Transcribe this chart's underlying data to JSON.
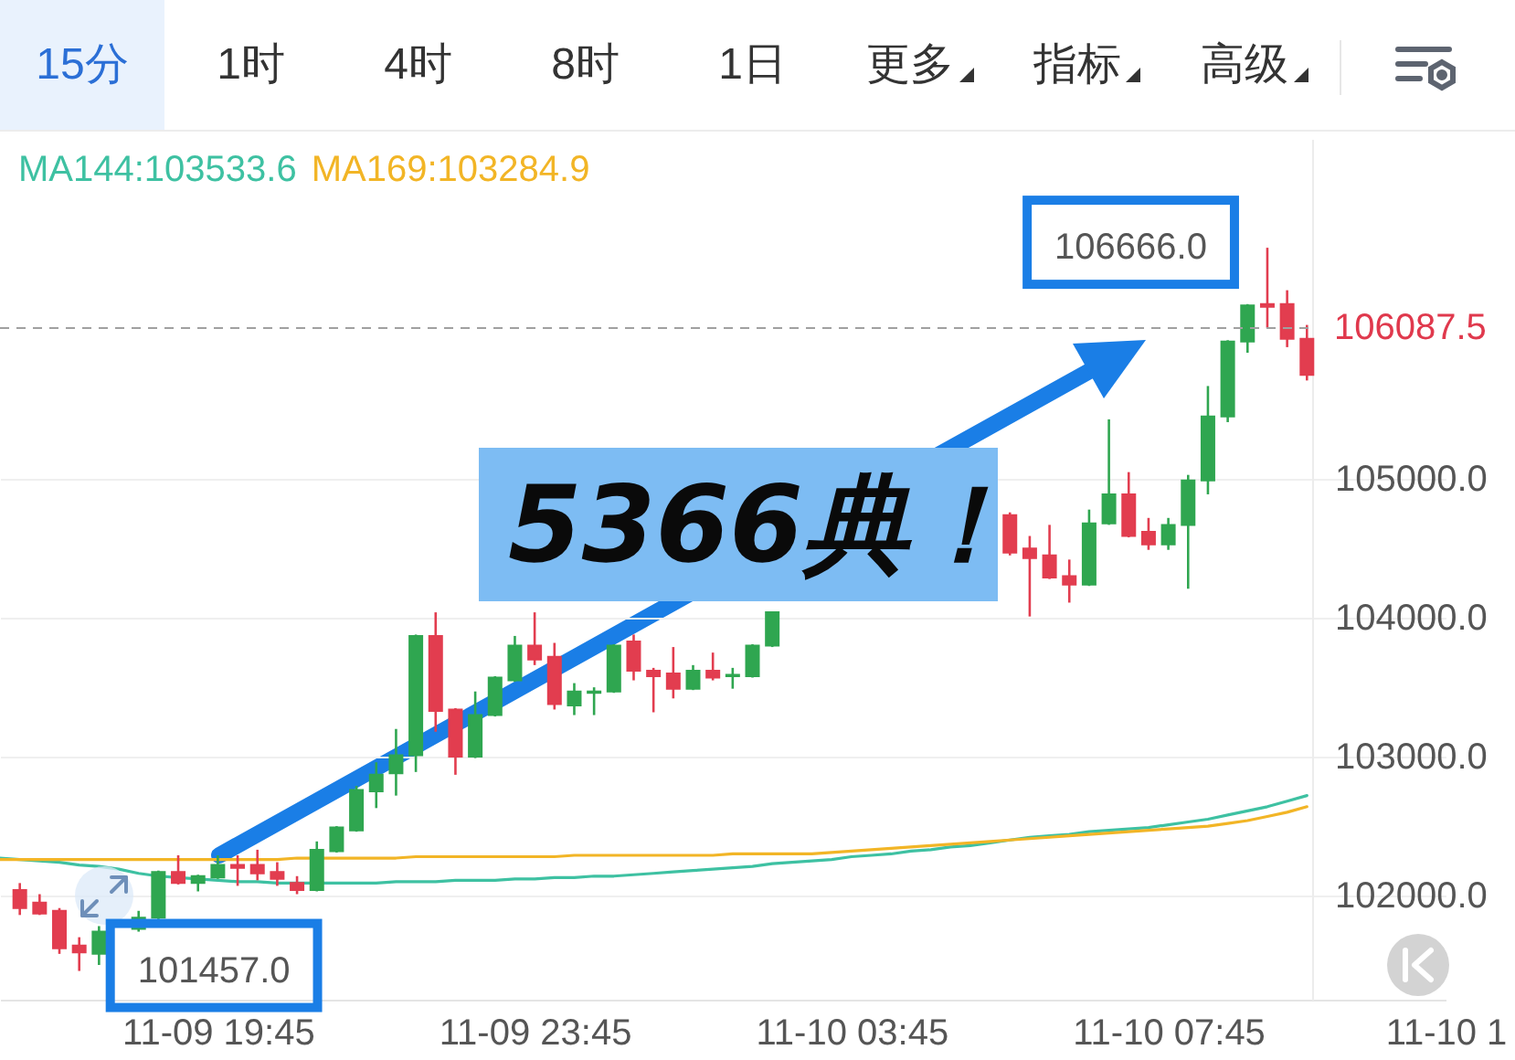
{
  "chart_data": {
    "type": "candlestick",
    "categories": [
      null,
      null,
      null,
      null,
      null,
      null,
      null,
      null,
      null,
      null,
      null,
      "11-09 19:45",
      null,
      null,
      null,
      null,
      null,
      null,
      null,
      null,
      null,
      null,
      null,
      null,
      null,
      null,
      null,
      "11-09 23:45",
      null,
      null,
      null,
      null,
      null,
      null,
      null,
      null,
      null,
      null,
      null,
      null,
      null,
      null,
      null,
      "11-10 03:45",
      null,
      null,
      null,
      null,
      null,
      null,
      null,
      null,
      null,
      null,
      null,
      null,
      null,
      null,
      null,
      "11-10 07:45",
      null,
      null,
      null,
      null,
      null,
      null,
      null,
      null,
      null,
      null,
      null,
      null,
      null,
      "11-10 1"
    ],
    "ohlc": [
      null,
      [
        102040,
        102090,
        101860,
        101910
      ],
      [
        101950,
        102010,
        101860,
        101870
      ],
      [
        101890,
        101910,
        101580,
        101620
      ],
      [
        101640,
        101700,
        101457,
        101590
      ],
      [
        101580,
        101780,
        101500,
        101740
      ],
      null,
      [
        101760,
        101890,
        101740,
        101840
      ],
      [
        101840,
        102180,
        101830,
        102170
      ],
      [
        102170,
        102290,
        102080,
        102090
      ],
      [
        102090,
        102150,
        102030,
        102140
      ],
      [
        102130,
        102290,
        102120,
        102220
      ],
      [
        102220,
        102290,
        102070,
        102200
      ],
      [
        102220,
        102330,
        102110,
        102160
      ],
      [
        102170,
        102240,
        102070,
        102120
      ],
      [
        102090,
        102140,
        102010,
        102040
      ],
      [
        102040,
        102390,
        102030,
        102330
      ],
      [
        102320,
        102500,
        102310,
        102490
      ],
      [
        102470,
        102790,
        102460,
        102760
      ],
      [
        102750,
        102960,
        102630,
        102870
      ],
      [
        102880,
        103200,
        102720,
        103010
      ],
      [
        103010,
        103880,
        102890,
        103870
      ],
      [
        103870,
        104040,
        103180,
        103330
      ],
      [
        103340,
        103350,
        102870,
        103000
      ],
      [
        103000,
        103470,
        102990,
        103300
      ],
      [
        103300,
        103580,
        103290,
        103570
      ],
      [
        103550,
        103870,
        103540,
        103800
      ],
      [
        103800,
        104040,
        103660,
        103700
      ],
      [
        103720,
        103820,
        103340,
        103380
      ],
      [
        103370,
        103530,
        103300,
        103470
      ],
      [
        103460,
        103500,
        103300,
        103470
      ],
      [
        103470,
        103810,
        103460,
        103800
      ],
      [
        103830,
        103880,
        103550,
        103620
      ],
      [
        103620,
        103640,
        103320,
        103580
      ],
      [
        103600,
        103790,
        103420,
        103490
      ],
      [
        103490,
        103660,
        103480,
        103620
      ],
      [
        103620,
        103750,
        103550,
        103570
      ],
      [
        103580,
        103640,
        103490,
        103590
      ],
      [
        103580,
        103810,
        103570,
        103800
      ],
      [
        103800,
        104040,
        103790,
        104040
      ],
      null,
      null,
      null,
      null,
      null,
      null,
      null,
      null,
      null,
      null,
      null,
      [
        104740,
        104760,
        104450,
        104470
      ],
      [
        104500,
        104590,
        104010,
        104430
      ],
      [
        104450,
        104670,
        104280,
        104290
      ],
      [
        104300,
        104420,
        104110,
        104240
      ],
      [
        104240,
        104780,
        104230,
        104680
      ],
      [
        104680,
        105430,
        104670,
        104890
      ],
      [
        104890,
        105050,
        104580,
        104590
      ],
      [
        104620,
        104720,
        104490,
        104530
      ],
      [
        104530,
        104720,
        104490,
        104670
      ],
      [
        104670,
        105030,
        104210,
        104990
      ],
      [
        104990,
        105670,
        104890,
        105450
      ],
      [
        105450,
        106000,
        105410,
        105990
      ],
      [
        105990,
        106260,
        105910,
        106250
      ],
      [
        106260,
        106666,
        106090,
        106240
      ],
      [
        106260,
        106360,
        105950,
        106010
      ],
      [
        106010,
        106110,
        105710,
        105750
      ],
      null,
      null,
      null,
      null,
      null,
      null,
      null
    ],
    "colors": [
      null,
      "#e23d4f",
      "#e23d4f",
      "#e23d4f",
      "#e23d4f",
      "#2fa650",
      null,
      "#2fa650",
      "#2fa650",
      "#e23d4f",
      "#2fa650",
      "#2fa650",
      "#e23d4f",
      "#e23d4f",
      "#e23d4f",
      "#e23d4f",
      "#2fa650",
      "#2fa650",
      "#2fa650",
      "#2fa650",
      "#2fa650",
      "#2fa650",
      "#e23d4f",
      "#e23d4f",
      "#2fa650",
      "#2fa650",
      "#2fa650",
      "#e23d4f",
      "#e23d4f",
      "#2fa650",
      "#2fa650",
      "#2fa650",
      "#e23d4f",
      "#e23d4f",
      "#e23d4f",
      "#2fa650",
      "#e23d4f",
      "#2fa650",
      "#2fa650",
      "#2fa650",
      null,
      null,
      null,
      null,
      null,
      null,
      null,
      null,
      null,
      null,
      null,
      "#e23d4f",
      "#e23d4f",
      "#e23d4f",
      "#e23d4f",
      "#2fa650",
      "#2fa650",
      "#e23d4f",
      "#e23d4f",
      "#2fa650",
      "#2fa650",
      "#2fa650",
      "#2fa650",
      "#2fa650",
      "#e23d4f",
      "#e23d4f",
      "#e23d4f",
      null,
      null,
      null,
      null,
      null,
      null,
      null
    ],
    "series": [
      {
        "name": "MA144:103533.6",
        "type": "line",
        "color": "#3ec1a2",
        "values": [
          102270,
          102260,
          102250,
          102240,
          102220,
          102210,
          102190,
          102160,
          102140,
          102130,
          102120,
          102110,
          102100,
          102100,
          102090,
          102090,
          102090,
          102090,
          102090,
          102090,
          102100,
          102100,
          102100,
          102110,
          102110,
          102110,
          102120,
          102120,
          102130,
          102130,
          102140,
          102140,
          102150,
          102160,
          102170,
          102180,
          102190,
          102200,
          102210,
          102230,
          102240,
          102250,
          102260,
          102280,
          102290,
          102300,
          102320,
          102330,
          102350,
          102360,
          102380,
          102400,
          102420,
          102430,
          102440,
          102460,
          102470,
          102480,
          102490,
          102510,
          102530,
          102550,
          102580,
          102610,
          102640,
          102680,
          102720,
          null,
          null,
          null,
          null,
          null,
          null,
          null
        ]
      },
      {
        "name": "MA169:103284.9",
        "type": "line",
        "color": "#f2b526",
        "values": [
          102260,
          102260,
          102260,
          102260,
          102260,
          102260,
          102260,
          102260,
          102260,
          102260,
          102260,
          102260,
          102260,
          102260,
          102260,
          102270,
          null,
          102270,
          102270,
          102270,
          102270,
          102280,
          102280,
          102280,
          102280,
          102280,
          102280,
          102280,
          102280,
          102290,
          102290,
          102290,
          102290,
          102290,
          102290,
          102290,
          102290,
          102300,
          102300,
          102300,
          102300,
          102300,
          102310,
          102320,
          102330,
          102340,
          102350,
          102360,
          102370,
          102380,
          102390,
          102400,
          102410,
          102420,
          102430,
          102440,
          102450,
          102460,
          102470,
          102480,
          102490,
          102500,
          102520,
          102540,
          102570,
          102600,
          102640,
          null,
          null,
          null,
          null,
          null,
          null,
          null
        ]
      }
    ],
    "ylim": [
      101250,
      107450
    ],
    "yticks": [
      {
        "value": 102000,
        "label": "102000.0"
      },
      {
        "value": 103000,
        "label": "103000.0"
      },
      {
        "value": 104000,
        "label": "104000.0"
      },
      {
        "value": 105000,
        "label": "105000.0"
      }
    ],
    "grid": "y",
    "legend": "top left",
    "ref_lines": [
      {
        "axis": "y",
        "value": 106087.5,
        "label": "106087.5",
        "color": "#a0a0a0",
        "line_style": "dashed"
      }
    ],
    "annotations": [
      "15分",
      "1时",
      "4时",
      "8时",
      "1日",
      "更多",
      "指标",
      "高级",
      "5366典！",
      "101457.0",
      "106666.0"
    ]
  }
}
